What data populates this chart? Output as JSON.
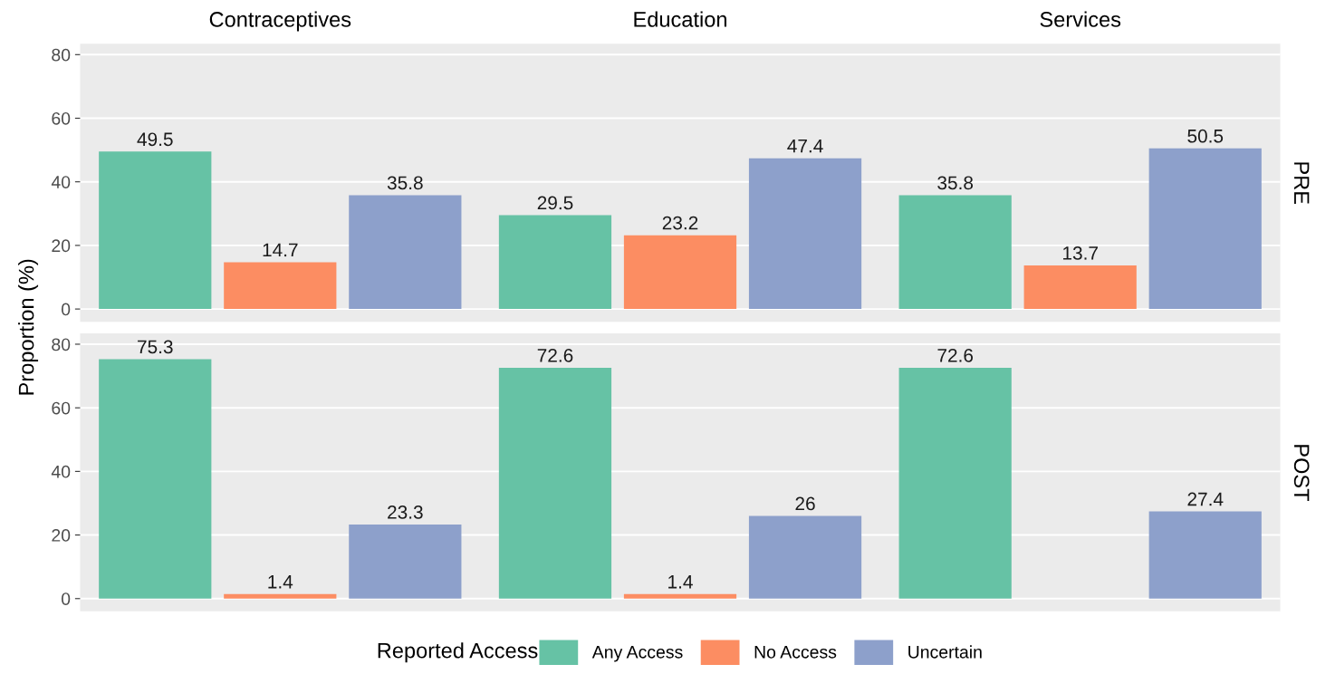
{
  "chart_data": [
    {
      "type": "bar",
      "ylabel": "Proportion (%)",
      "y2label": "PRE",
      "categories": [
        "Contraceptives",
        "Education",
        "Services"
      ],
      "series": [
        {
          "name": "Any Access",
          "color": "#66c2a5",
          "values": [
            49.5,
            29.5,
            35.8
          ]
        },
        {
          "name": "No Access",
          "color": "#fc8d62",
          "values": [
            14.7,
            23.2,
            13.7
          ]
        },
        {
          "name": "Uncertain",
          "color": "#8da0cb",
          "values": [
            35.8,
            47.4,
            50.5
          ]
        }
      ],
      "ylim": [
        -4,
        83.4
      ],
      "yticks": [
        0,
        20,
        40,
        60,
        80
      ],
      "grid": "y",
      "data_labels": true,
      "legend": "bottom",
      "legend_title": "Reported Access"
    },
    {
      "type": "bar",
      "y2label": "POST",
      "categories": [
        null,
        null,
        null
      ],
      "series": [
        {
          "color": "#66c2a5",
          "values": [
            75.3,
            72.6,
            72.6
          ]
        },
        {
          "color": "#fc8d62",
          "values": [
            1.4,
            1.4,
            null
          ]
        },
        {
          "color": "#8da0cb",
          "values": [
            23.3,
            26,
            27.4
          ]
        }
      ],
      "ylim": [
        -4,
        83.4
      ],
      "yticks": [
        0,
        20,
        40,
        60,
        80
      ],
      "grid": "y",
      "data_labels": true
    }
  ]
}
